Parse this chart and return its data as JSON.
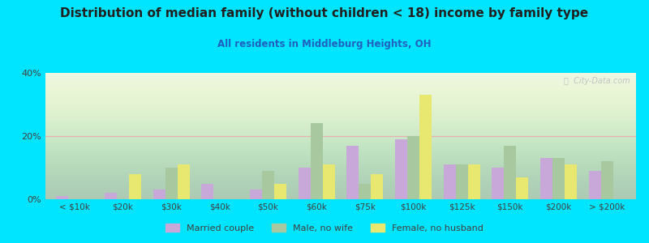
{
  "title": "Distribution of median family (without children < 18) income by family type",
  "subtitle": "All residents in Middleburg Heights, OH",
  "categories": [
    "< $10k",
    "$20k",
    "$30k",
    "$40k",
    "$50k",
    "$60k",
    "$75k",
    "$100k",
    "$125k",
    "$150k",
    "$200k",
    "> $200k"
  ],
  "married_couple": [
    1,
    2,
    3,
    5,
    3,
    10,
    17,
    19,
    11,
    10,
    13,
    9
  ],
  "male_no_wife": [
    0,
    0,
    10,
    0,
    9,
    24,
    5,
    20,
    11,
    17,
    13,
    12
  ],
  "female_no_husband": [
    0,
    8,
    11,
    0,
    5,
    11,
    8,
    33,
    11,
    7,
    11,
    0
  ],
  "married_color": "#c8a8d8",
  "male_color": "#a8c8a0",
  "female_color": "#e8e870",
  "bg_outer": "#00e5ff",
  "grid_color": "#e8b0b0",
  "title_color": "#202020",
  "subtitle_color": "#2060c0",
  "axis_color": "#404040",
  "ylim": [
    0,
    40
  ],
  "yticks": [
    0,
    20,
    40
  ],
  "bar_width": 0.25,
  "watermark": "ⓘ  City-Data.com"
}
